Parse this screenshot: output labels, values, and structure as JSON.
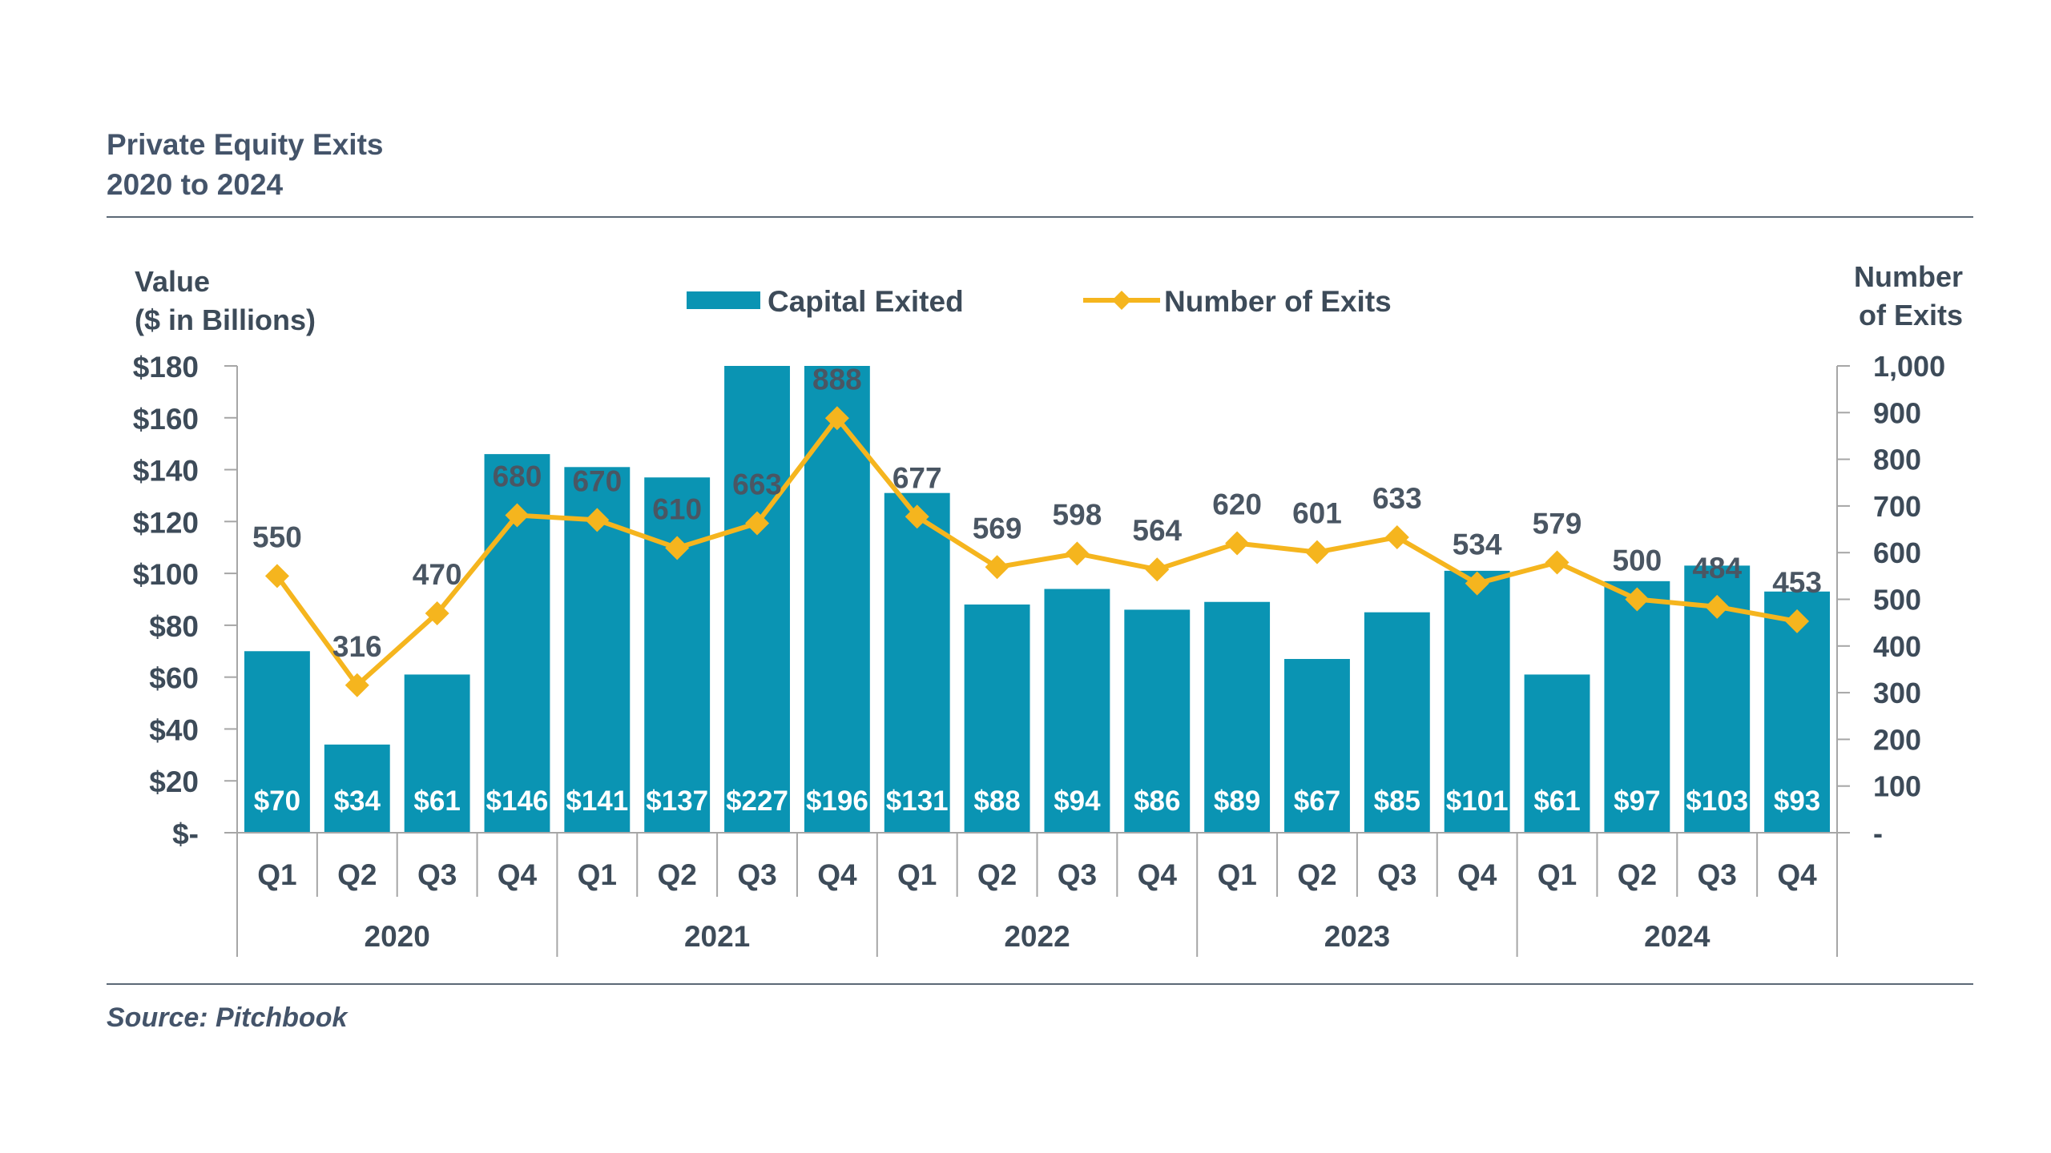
{
  "title": {
    "line1": "Private Equity Exits",
    "line2": "2020 to 2024"
  },
  "source": "Source: Pitchbook",
  "colors": {
    "bar": "#0a94b3",
    "line": "#f5b51e",
    "text": "#3d4b59",
    "axis": "#a6a6a6"
  },
  "chart_data": {
    "type": "bar",
    "y_left_label": [
      "Value",
      "($ in Billions)"
    ],
    "y_right_label": [
      "Number",
      "of Exits"
    ],
    "legend": {
      "bar": "Capital Exited",
      "line": "Number of Exits",
      "placement": "top"
    },
    "y_left_ticks": [
      "$180",
      "$160",
      "$140",
      "$120",
      "$100",
      "$80",
      "$60",
      "$40",
      "$20",
      "$-"
    ],
    "y_right_ticks": [
      "1,000",
      "900",
      "800",
      "700",
      "600",
      "500",
      "400",
      "300",
      "200",
      "100",
      "-"
    ],
    "ylim_left": [
      0,
      180
    ],
    "ylim_right": [
      0,
      1000
    ],
    "years": [
      "2020",
      "2021",
      "2022",
      "2023",
      "2024"
    ],
    "quarters": [
      "Q1",
      "Q2",
      "Q3",
      "Q4"
    ],
    "categories": [
      "2020 Q1",
      "2020 Q2",
      "2020 Q3",
      "2020 Q4",
      "2021 Q1",
      "2021 Q2",
      "2021 Q3",
      "2021 Q4",
      "2022 Q1",
      "2022 Q2",
      "2022 Q3",
      "2022 Q4",
      "2023 Q1",
      "2023 Q2",
      "2023 Q3",
      "2023 Q4",
      "2024 Q1",
      "2024 Q2",
      "2024 Q3",
      "2024 Q4"
    ],
    "series": [
      {
        "name": "Capital Exited",
        "kind": "bar",
        "values": [
          70,
          34,
          61,
          146,
          141,
          137,
          227,
          196,
          131,
          88,
          94,
          86,
          89,
          67,
          85,
          101,
          61,
          97,
          103,
          93
        ],
        "labels": [
          "$70",
          "$34",
          "$61",
          "$146",
          "$141",
          "$137",
          "$227",
          "$196",
          "$131",
          "$88",
          "$94",
          "$86",
          "$89",
          "$67",
          "$85",
          "$101",
          "$61",
          "$97",
          "$103",
          "$93"
        ]
      },
      {
        "name": "Number of Exits",
        "kind": "line",
        "values": [
          550,
          316,
          470,
          680,
          670,
          610,
          663,
          888,
          677,
          569,
          598,
          564,
          620,
          601,
          633,
          534,
          579,
          500,
          484,
          453
        ],
        "labels": [
          "550",
          "316",
          "470",
          "680",
          "670",
          "610",
          "663",
          "888",
          "677",
          "569",
          "598",
          "564",
          "620",
          "601",
          "633",
          "534",
          "579",
          "500",
          "484",
          "453"
        ]
      }
    ]
  }
}
